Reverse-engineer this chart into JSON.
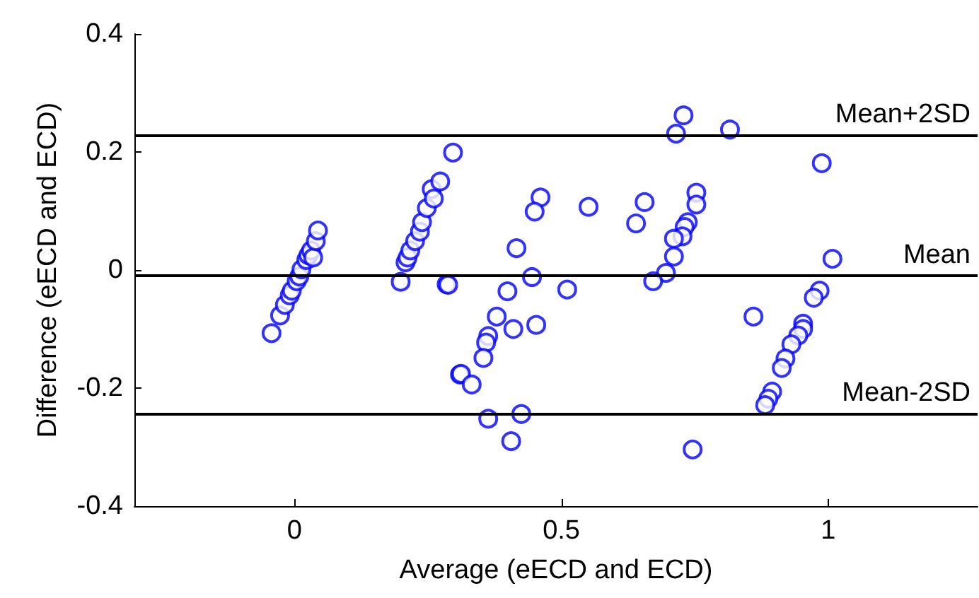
{
  "chart_data": {
    "type": "scatter",
    "xlabel": "Average (eECD and ECD)",
    "ylabel": "Difference (eECD and ECD)",
    "xlim": [
      -0.3,
      1.28
    ],
    "xticks": [
      0,
      0.5,
      1
    ],
    "ylim": [
      -0.4,
      0.4
    ],
    "yticks": [
      -0.4,
      -0.2,
      0,
      0.2,
      0.4
    ],
    "grid": false,
    "marker": "circle",
    "ref_lines": [
      {
        "axis": "y",
        "value": 0.229,
        "label": "Mean+2SD",
        "color": "#000000"
      },
      {
        "axis": "y",
        "value": -0.009,
        "label": "Mean",
        "color": "#000000"
      },
      {
        "axis": "y",
        "value": -0.243,
        "label": "Mean-2SD",
        "color": "#000000"
      }
    ],
    "series": [
      {
        "color": "#0000ff",
        "x": [
          -0.043,
          -0.027,
          -0.018,
          -0.009,
          -0.005,
          0.004,
          0.009,
          0.013,
          0.022,
          0.026,
          0.031,
          0.035,
          0.04,
          0.044,
          0.199,
          0.208,
          0.212,
          0.217,
          0.226,
          0.235,
          0.239,
          0.248,
          0.257,
          0.261,
          0.273,
          0.297,
          0.285,
          0.288,
          0.31,
          0.461,
          0.45,
          0.551,
          0.656,
          0.64,
          0.715,
          0.729,
          0.816,
          0.753,
          0.753,
          0.737,
          0.731,
          0.727,
          0.711,
          0.711,
          0.696,
          0.672,
          0.416,
          0.445,
          0.399,
          0.511,
          0.379,
          0.41,
          0.453,
          0.363,
          0.359,
          0.354,
          0.312,
          0.332,
          0.363,
          0.425,
          0.406,
          0.746,
          0.86,
          0.988,
          1.008,
          0.984,
          0.973,
          0.953,
          0.953,
          0.944,
          0.931,
          0.92,
          0.913,
          0.895,
          0.888,
          0.882
        ],
        "values": [
          -0.107,
          -0.077,
          -0.059,
          -0.043,
          -0.035,
          -0.019,
          -0.011,
          0.001,
          0.017,
          0.025,
          0.033,
          0.021,
          0.049,
          0.067,
          -0.02,
          0.013,
          0.021,
          0.033,
          0.049,
          0.065,
          0.081,
          0.105,
          0.137,
          0.121,
          0.15,
          0.199,
          -0.024,
          -0.025,
          -0.177,
          0.123,
          0.099,
          0.107,
          0.115,
          0.079,
          0.231,
          0.262,
          0.238,
          0.131,
          0.111,
          0.081,
          0.073,
          0.057,
          0.053,
          0.023,
          -0.005,
          -0.019,
          0.037,
          -0.012,
          -0.036,
          -0.033,
          -0.079,
          -0.1,
          -0.093,
          -0.112,
          -0.123,
          -0.149,
          -0.176,
          -0.194,
          -0.252,
          -0.244,
          -0.29,
          -0.304,
          -0.079,
          0.181,
          0.019,
          -0.035,
          -0.047,
          -0.091,
          -0.1,
          -0.111,
          -0.126,
          -0.15,
          -0.166,
          -0.206,
          -0.218,
          -0.229
        ]
      }
    ]
  }
}
